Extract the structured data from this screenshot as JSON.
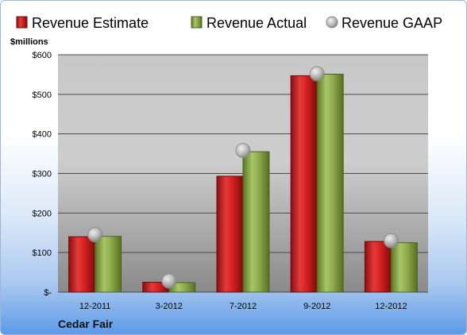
{
  "chart_data": {
    "type": "bar",
    "unit_label": "$millions",
    "categories": [
      "12-2011",
      "3-2012",
      "7-2012",
      "9-2012",
      "12-2012"
    ],
    "series": [
      {
        "name": "Revenue Estimate",
        "kind": "bar",
        "color": "#d42020",
        "values": [
          140,
          25,
          293,
          547,
          128
        ]
      },
      {
        "name": "Revenue Actual",
        "kind": "bar",
        "color": "#8fac4c",
        "values": [
          141,
          24,
          355,
          551,
          125
        ]
      },
      {
        "name": "Revenue GAAP",
        "kind": "marker",
        "color": "#b8b8b8",
        "values": [
          145,
          28,
          358,
          552,
          130
        ]
      }
    ],
    "y_ticks": [
      0,
      100,
      200,
      300,
      400,
      500,
      600
    ],
    "y_tick_labels": [
      "$-",
      "$100",
      "$200",
      "$300",
      "$400",
      "$500",
      "$600"
    ],
    "ylim": [
      0,
      600
    ],
    "grid": true,
    "legend_position": "top",
    "footer_label": "Cedar Fair"
  }
}
